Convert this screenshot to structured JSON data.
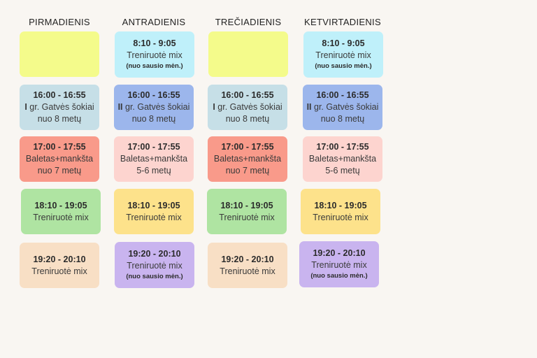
{
  "days": [
    "PIRMADIENIS",
    "ANTRADIENIS",
    "TREČIADIENIS",
    "KETVIRTADIENIS"
  ],
  "colors": {
    "yellow": "#f4fb8b",
    "cyan": "#bff0fa",
    "lightblue": "#c6dfe7",
    "blue": "#9cb6ec",
    "red": "#f99a8a",
    "pink": "#fdd4cf",
    "green": "#afe4a2",
    "gold": "#fde28b",
    "peach": "#f8dfc5",
    "purple": "#c9b4ef"
  },
  "schedule": {
    "mon": {
      "s1": {},
      "s2": {
        "time": "16:00 - 16:55",
        "prefix": "I",
        "line1": " gr. Gatvės šokiai",
        "line2": "nuo 8 metų"
      },
      "s3": {
        "time": "17:00 - 17:55",
        "line1": "Baletas+mankšta",
        "line2": "nuo 7 metų"
      },
      "s4": {
        "time": "18:10 - 19:05",
        "line1": "Treniruotė mix"
      },
      "s5": {
        "time": "19:20 - 20:10",
        "line1": "Treniruotė mix"
      }
    },
    "tue": {
      "s1": {
        "time": "8:10 - 9:05",
        "line1": "Treniruotė mix",
        "note": "(nuo sausio mėn.)"
      },
      "s2": {
        "time": "16:00 - 16:55",
        "prefix": "II",
        "line1": " gr. Gatvės šokiai",
        "line2": "nuo 8 metų"
      },
      "s3": {
        "time": "17:00 - 17:55",
        "line1": "Baletas+mankšta",
        "line2": "5-6 metų"
      },
      "s4": {
        "time": "18:10 - 19:05",
        "line1": "Treniruotė mix"
      },
      "s5": {
        "time": "19:20 - 20:10",
        "line1": "Treniruotė mix",
        "note": "(nuo sausio mėn.)"
      }
    },
    "wed": {
      "s1": {},
      "s2": {
        "time": "16:00 - 16:55",
        "prefix": "I",
        "line1": " gr. Gatvės šokiai",
        "line2": "nuo 8 metų"
      },
      "s3": {
        "time": "17:00 - 17:55",
        "line1": "Baletas+mankšta",
        "line2": "nuo 7 metų"
      },
      "s4": {
        "time": "18:10 - 19:05",
        "line1": "Treniruotė mix"
      },
      "s5": {
        "time": "19:20 - 20:10",
        "line1": "Treniruotė mix"
      }
    },
    "thu": {
      "s1": {
        "time": "8:10 - 9:05",
        "line1": "Treniruotė mix",
        "note": "(nuo sausio mėn.)"
      },
      "s2": {
        "time": "16:00 - 16:55",
        "prefix": "II",
        "line1": " gr. Gatvės šokiai",
        "line2": "nuo 8 metų"
      },
      "s3": {
        "time": "17:00 - 17:55",
        "line1": "Baletas+mankšta",
        "line2": "5-6 metų"
      },
      "s4": {
        "time": "18:10 - 19:05",
        "line1": "Treniruotė mix"
      },
      "s5": {
        "time": "19:20 - 20:10",
        "line1": "Treniruotė mix",
        "note": "(nuo sausio mėn.)"
      }
    }
  }
}
